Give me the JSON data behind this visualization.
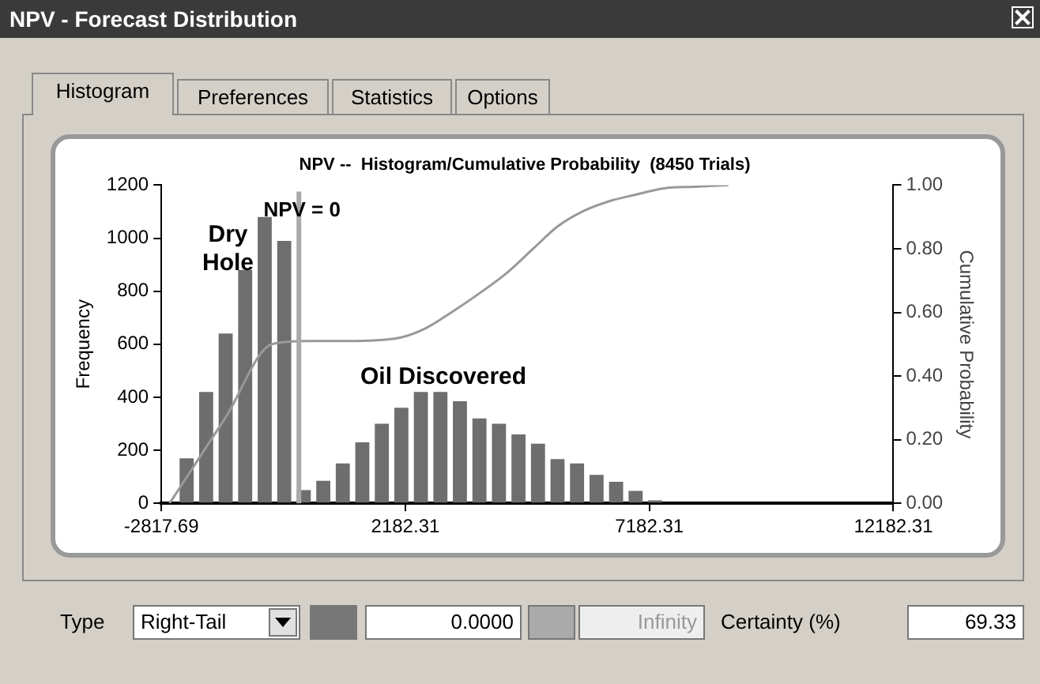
{
  "chart_data": {
    "type": "histogram",
    "title": "NPV --  Histogram/Cumulative Probability  (8450 Trials)",
    "ylabel": "Frequency",
    "y2label": "Cumulative Probability",
    "bins": [
      -2500,
      -2100,
      -1700,
      -1300,
      -900,
      -500,
      -100,
      300,
      700,
      1100,
      1500,
      1900,
      2300,
      2700,
      3100,
      3500,
      3900,
      4300,
      4700,
      5100,
      5500,
      5900,
      6300,
      6700,
      7100,
      7500
    ],
    "values": [
      170,
      420,
      640,
      880,
      1080,
      990,
      50,
      85,
      150,
      230,
      300,
      360,
      420,
      420,
      385,
      320,
      300,
      260,
      225,
      167,
      150,
      107,
      81,
      47,
      11
    ],
    "color": "#6e6e6e",
    "series": [
      {
        "type": "line",
        "color": "#999999",
        "axis": "y2",
        "x": [
          -2650,
          -1500,
          -550,
          200,
          1000,
          2050,
          2600,
          3125,
          3700,
          4230,
          4800,
          5300,
          5850,
          6375,
          6900,
          7480,
          8100,
          8800
        ],
        "values": [
          0,
          0.27,
          0.5,
          0.51,
          0.51,
          0.52,
          0.55,
          0.6,
          0.66,
          0.72,
          0.8,
          0.87,
          0.92,
          0.95,
          0.97,
          0.99,
          0.995,
          1.0
        ]
      }
    ],
    "xlim": [
      -2817.69,
      12182.31
    ],
    "xticks": [
      -2817.69,
      2182.31,
      7182.31,
      12182.31
    ],
    "ylim": [
      0,
      1200
    ],
    "yticks": [
      0,
      200,
      400,
      600,
      800,
      1000,
      1200
    ],
    "y2lim": [
      0,
      1
    ],
    "y2ticks": [
      {
        "value": 0,
        "label": "0.00"
      },
      {
        "value": 0.2,
        "label": "0.20"
      },
      {
        "value": 0.4,
        "label": "0.40"
      },
      {
        "value": 0.6,
        "label": "0.60"
      },
      {
        "value": 0.8,
        "label": "0.80"
      },
      {
        "value": 1,
        "label": "1.00"
      }
    ],
    "ref_lines": [
      {
        "axis": "x",
        "value": 0,
        "label": "NPV = 0",
        "color": "#aaaaaa"
      }
    ],
    "annotations": [
      "NPV - Forecast Distribution",
      "Histogram",
      "Preferences",
      "Statistics",
      "Options",
      "Type",
      "Right-Tail",
      "0.0000",
      "Infinity",
      "Certainty (%)",
      "69.33",
      "Dry\nHole",
      "Oil Discovered"
    ],
    "grid": false,
    "legend": false,
    "marker": "none",
    "line_style": "solid"
  }
}
